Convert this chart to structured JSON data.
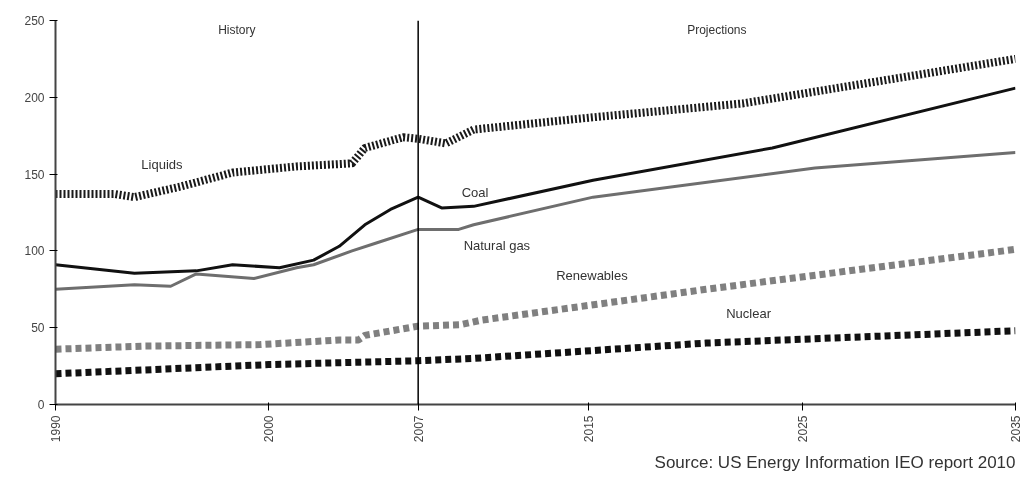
{
  "chart_data": {
    "type": "line",
    "xlim": [
      1990,
      2035
    ],
    "ylim": [
      0,
      250
    ],
    "xticks": [
      1990,
      2000,
      2007,
      2015,
      2025,
      2035
    ],
    "yticks": [
      0,
      50,
      100,
      150,
      200,
      250
    ],
    "grid": false,
    "series": [
      {
        "name": "Liquids",
        "color": "#1a1a1a",
        "line_style": "dotted",
        "x": [
          1990,
          1992.8,
          1993.7,
          1995.9,
          1998.3,
          2001.3,
          2003.9,
          2004.5,
          2006.3,
          2007,
          2008.3,
          2009.6,
          2015.2,
          2022.2,
          2035
        ],
        "values": [
          137,
          137,
          135,
          142,
          151,
          155,
          157,
          167,
          174,
          173,
          170,
          179,
          187,
          196,
          225
        ]
      },
      {
        "name": "Coal",
        "color": "#111111",
        "line_style": "solid",
        "x": [
          1990,
          1993.7,
          1996.6,
          1998.3,
          2000.5,
          2002.1,
          2003.3,
          2004.5,
          2005.7,
          2007,
          2008.1,
          2009.6,
          2015.2,
          2023.6,
          2035
        ],
        "values": [
          91,
          85.5,
          87,
          91,
          89,
          94,
          103,
          117,
          127,
          135,
          128,
          129,
          146,
          167,
          206
        ]
      },
      {
        "name": "Natural gas",
        "color": "#6e6e6e",
        "line_style": "solid",
        "x": [
          1990,
          1993.7,
          1995.4,
          1996.6,
          1999.3,
          2001.3,
          2002.1,
          2003.9,
          2005,
          2007,
          2008.9,
          2009.6,
          2015.2,
          2025.6,
          2035
        ],
        "values": [
          75,
          78,
          77,
          85,
          82,
          89,
          91,
          100,
          105,
          114,
          114,
          117,
          135,
          154,
          164
        ]
      },
      {
        "name": "Renewables",
        "color": "#808080",
        "line_style": "dashed",
        "x": [
          1990,
          1994.1,
          1999.6,
          2003.3,
          2004.2,
          2004.5,
          2007,
          2009,
          2010,
          2020.5,
          2035
        ],
        "values": [
          36,
          38,
          39,
          42,
          42,
          45,
          51,
          52,
          55,
          75,
          101
        ]
      },
      {
        "name": "Nuclear",
        "color": "#111111",
        "line_style": "dashed",
        "x": [
          1990,
          2000,
          2007,
          2009.6,
          2020.5,
          2035
        ],
        "values": [
          20,
          26,
          28.5,
          30,
          40,
          48
        ]
      }
    ],
    "ref_lines": [
      {
        "axis": "x",
        "value": 2007,
        "color": "#000000",
        "line_style": "solid"
      }
    ],
    "annotations": [
      "History",
      "Projections",
      "Source: US Energy Information IEO report 2010"
    ]
  }
}
